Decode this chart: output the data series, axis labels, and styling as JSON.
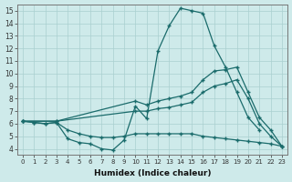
{
  "xlabel": "Humidex (Indice chaleur)",
  "xlim": [
    -0.5,
    23.5
  ],
  "ylim": [
    3.5,
    15.5
  ],
  "xticks": [
    0,
    1,
    2,
    3,
    4,
    5,
    6,
    7,
    8,
    9,
    10,
    11,
    12,
    13,
    14,
    15,
    16,
    17,
    18,
    19,
    20,
    21,
    22,
    23
  ],
  "yticks": [
    4,
    5,
    6,
    7,
    8,
    9,
    10,
    11,
    12,
    13,
    14,
    15
  ],
  "bg_color": "#ceeaea",
  "grid_color": "#aacfcf",
  "line_color": "#1a6b6b",
  "line1_x": [
    0,
    1,
    2,
    3,
    4,
    5,
    6,
    7,
    8,
    9,
    10,
    11,
    12,
    13,
    14,
    15,
    16,
    17,
    18,
    19,
    20,
    21
  ],
  "line1_y": [
    6.2,
    6.1,
    6.0,
    6.1,
    4.8,
    4.5,
    4.4,
    4.0,
    3.9,
    4.7,
    7.4,
    6.4,
    11.8,
    13.8,
    15.2,
    15.0,
    14.8,
    12.2,
    10.5,
    8.5,
    6.5,
    5.5
  ],
  "line2_x": [
    0,
    3,
    10,
    11,
    12,
    13,
    14,
    15,
    16,
    17,
    18,
    19,
    20,
    21,
    22,
    23
  ],
  "line2_y": [
    6.2,
    6.2,
    7.8,
    7.5,
    7.8,
    8.0,
    8.2,
    8.5,
    9.5,
    10.2,
    10.3,
    10.5,
    8.5,
    6.5,
    5.5,
    4.2
  ],
  "line3_x": [
    0,
    3,
    10,
    11,
    12,
    13,
    14,
    15,
    16,
    17,
    18,
    19,
    20,
    21,
    22,
    23
  ],
  "line3_y": [
    6.2,
    6.2,
    7.0,
    7.0,
    7.2,
    7.3,
    7.5,
    7.7,
    8.5,
    9.0,
    9.2,
    9.5,
    8.0,
    6.0,
    5.0,
    4.2
  ],
  "line4_x": [
    0,
    1,
    2,
    3,
    4,
    5,
    6,
    7,
    8,
    9,
    10,
    11,
    12,
    13,
    14,
    15,
    16,
    17,
    18,
    19,
    20,
    21,
    22,
    23
  ],
  "line4_y": [
    6.2,
    6.1,
    6.0,
    6.1,
    5.5,
    5.2,
    5.0,
    4.9,
    4.9,
    5.0,
    5.2,
    5.2,
    5.2,
    5.2,
    5.2,
    5.2,
    5.0,
    4.9,
    4.8,
    4.7,
    4.6,
    4.5,
    4.4,
    4.2
  ]
}
